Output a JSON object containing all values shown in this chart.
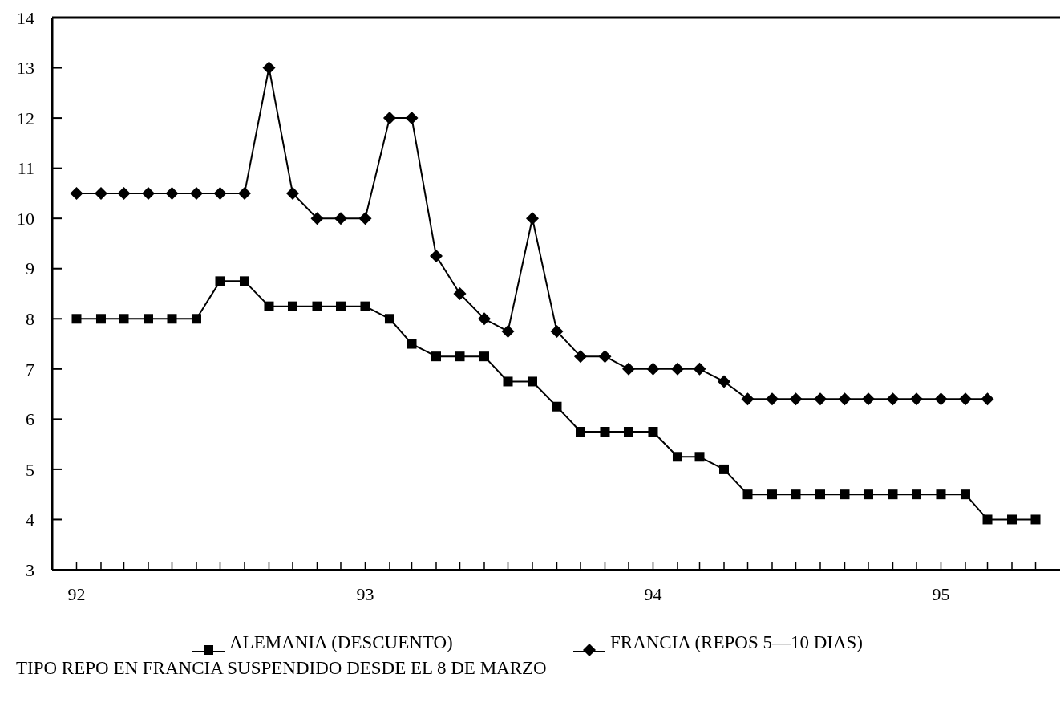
{
  "chart_data": {
    "type": "line",
    "x": [
      "1992-01",
      "1992-02",
      "1992-03",
      "1992-04",
      "1992-05",
      "1992-06",
      "1992-07",
      "1992-08",
      "1992-09",
      "1992-10",
      "1992-11",
      "1992-12",
      "1993-01",
      "1993-02",
      "1993-03",
      "1993-04",
      "1993-05",
      "1993-06",
      "1993-07",
      "1993-08",
      "1993-09",
      "1993-10",
      "1993-11",
      "1993-12",
      "1994-01",
      "1994-02",
      "1994-03",
      "1994-04",
      "1994-05",
      "1994-06",
      "1994-07",
      "1994-08",
      "1994-09",
      "1994-10",
      "1994-11",
      "1994-12",
      "1995-01",
      "1995-02",
      "1995-03",
      "1995-04",
      "1995-05"
    ],
    "series": [
      {
        "name": "ALEMANIA (DESCUENTO)",
        "color": "#000000",
        "marker": "square",
        "values": [
          8,
          8,
          8,
          8,
          8,
          8,
          8.75,
          8.75,
          8.25,
          8.25,
          8.25,
          8.25,
          8.25,
          8,
          7.5,
          7.25,
          7.25,
          7.25,
          6.75,
          6.75,
          6.25,
          5.75,
          5.75,
          5.75,
          5.75,
          5.25,
          5.25,
          5,
          4.5,
          4.5,
          4.5,
          4.5,
          4.5,
          4.5,
          4.5,
          4.5,
          4.5,
          4.5,
          4,
          4,
          4
        ]
      },
      {
        "name": "FRANCIA (REPOS 5—10 DIAS)",
        "color": "#000000",
        "marker": "diamond",
        "values": [
          10.5,
          10.5,
          10.5,
          10.5,
          10.5,
          10.5,
          10.5,
          10.5,
          13,
          10.5,
          10,
          10,
          10,
          12,
          12,
          9.25,
          8.5,
          8,
          7.75,
          10,
          7.75,
          7.25,
          7.25,
          7,
          7,
          7,
          7,
          6.75,
          6.4,
          6.4,
          6.4,
          6.4,
          6.4,
          6.4,
          6.4,
          6.4,
          6.4,
          6.4,
          6.4,
          null,
          null
        ]
      }
    ],
    "xlim": [
      "1991-12",
      "1995-06"
    ],
    "xticks": [
      {
        "value": "1992-01",
        "label": "92"
      },
      {
        "value": "1992-02",
        "label": null
      },
      {
        "value": "1992-03",
        "label": null
      },
      {
        "value": "1992-04",
        "label": null
      },
      {
        "value": "1992-05",
        "label": null
      },
      {
        "value": "1992-06",
        "label": null
      },
      {
        "value": "1992-07",
        "label": null
      },
      {
        "value": "1992-08",
        "label": null
      },
      {
        "value": "1992-09",
        "label": null
      },
      {
        "value": "1992-10",
        "label": null
      },
      {
        "value": "1992-11",
        "label": null
      },
      {
        "value": "1992-12",
        "label": null
      },
      {
        "value": "1993-01",
        "label": "93"
      },
      {
        "value": "1993-02",
        "label": null
      },
      {
        "value": "1993-03",
        "label": null
      },
      {
        "value": "1993-04",
        "label": null
      },
      {
        "value": "1993-05",
        "label": null
      },
      {
        "value": "1993-06",
        "label": null
      },
      {
        "value": "1993-07",
        "label": null
      },
      {
        "value": "1993-08",
        "label": null
      },
      {
        "value": "1993-09",
        "label": null
      },
      {
        "value": "1993-10",
        "label": null
      },
      {
        "value": "1993-11",
        "label": null
      },
      {
        "value": "1993-12",
        "label": null
      },
      {
        "value": "1994-01",
        "label": "94"
      },
      {
        "value": "1994-02",
        "label": null
      },
      {
        "value": "1994-03",
        "label": null
      },
      {
        "value": "1994-04",
        "label": null
      },
      {
        "value": "1994-05",
        "label": null
      },
      {
        "value": "1994-06",
        "label": null
      },
      {
        "value": "1994-07",
        "label": null
      },
      {
        "value": "1994-08",
        "label": null
      },
      {
        "value": "1994-09",
        "label": null
      },
      {
        "value": "1994-10",
        "label": null
      },
      {
        "value": "1994-11",
        "label": null
      },
      {
        "value": "1994-12",
        "label": null
      },
      {
        "value": "1995-01",
        "label": "95"
      },
      {
        "value": "1995-02",
        "label": null
      },
      {
        "value": "1995-03",
        "label": null
      },
      {
        "value": "1995-04",
        "label": null
      },
      {
        "value": "1995-05",
        "label": null
      }
    ],
    "ylim": [
      3,
      14
    ],
    "yticks": [
      3,
      4,
      5,
      6,
      7,
      8,
      9,
      10,
      11,
      12,
      13,
      14
    ],
    "grid": false,
    "legend": "bottom",
    "line_style": "solid",
    "annotations": [
      "TIPO REPO EN FRANCIA SUSPENDIDO DESDE EL 8 DE MARZO"
    ]
  }
}
